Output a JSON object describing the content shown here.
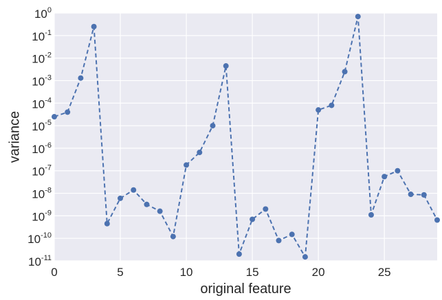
{
  "chart_data": {
    "type": "line",
    "title": "",
    "xlabel": "original feature",
    "ylabel": "variance",
    "xlim": [
      0,
      29
    ],
    "ylim": [
      1e-11,
      1
    ],
    "yscale": "log",
    "grid": true,
    "background": "#EAEAF2",
    "grid_color": "#FFFFFF",
    "line_color": "#4C72B0",
    "line_style": "dashed",
    "marker": "circle",
    "xticks": [
      0,
      5,
      10,
      15,
      20,
      25
    ],
    "yticks": [
      {
        "base": "10",
        "exp": "-11",
        "value": 1e-11
      },
      {
        "base": "10",
        "exp": "-10",
        "value": 1e-10
      },
      {
        "base": "10",
        "exp": "-9",
        "value": 1e-09
      },
      {
        "base": "10",
        "exp": "-8",
        "value": 1e-08
      },
      {
        "base": "10",
        "exp": "-7",
        "value": 1e-07
      },
      {
        "base": "10",
        "exp": "-6",
        "value": 1e-06
      },
      {
        "base": "10",
        "exp": "-5",
        "value": 1e-05
      },
      {
        "base": "10",
        "exp": "-4",
        "value": 0.0001
      },
      {
        "base": "10",
        "exp": "-3",
        "value": 0.001
      },
      {
        "base": "10",
        "exp": "-2",
        "value": 0.01
      },
      {
        "base": "10",
        "exp": "-1",
        "value": 0.1
      },
      {
        "base": "10",
        "exp": "0",
        "value": 1
      }
    ],
    "x": [
      0,
      1,
      2,
      3,
      4,
      5,
      6,
      7,
      8,
      9,
      10,
      11,
      12,
      13,
      14,
      15,
      16,
      17,
      18,
      19,
      20,
      21,
      22,
      23,
      24,
      25,
      26,
      27,
      28,
      29
    ],
    "y": [
      2.5e-05,
      4e-05,
      0.0013,
      0.25,
      4.5e-10,
      6e-09,
      1.4e-08,
      3.2e-09,
      1.6e-09,
      1.2e-10,
      1.8e-07,
      6.5e-07,
      1e-05,
      0.0045,
      2e-11,
      7e-10,
      2e-09,
      8e-11,
      1.5e-10,
      1.5e-11,
      5e-05,
      8e-05,
      0.0025,
      0.7,
      1.1e-09,
      5.5e-08,
      1e-07,
      9e-09,
      8.5e-09,
      6.5e-10
    ]
  }
}
